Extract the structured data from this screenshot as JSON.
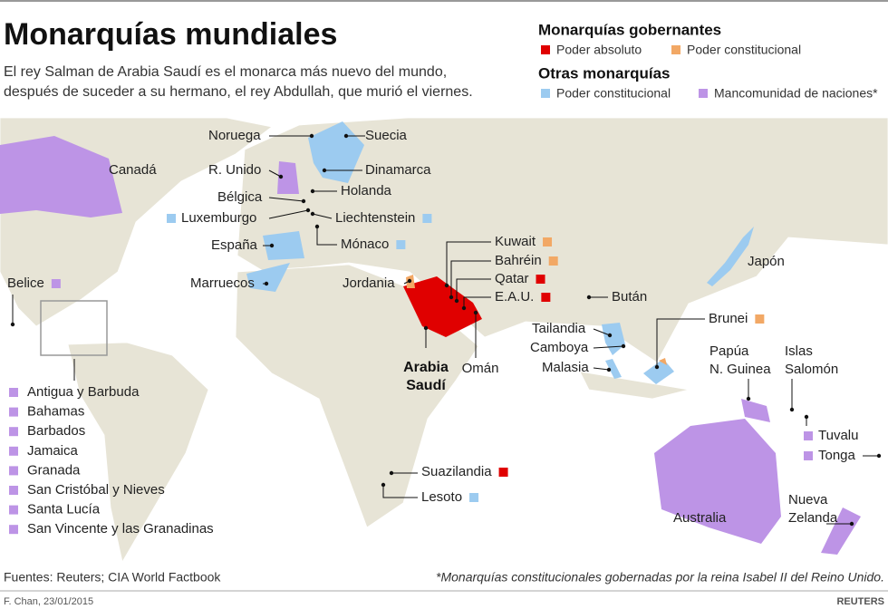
{
  "header": {
    "title": "Monarquías mundiales",
    "subtitle": [
      "El rey Salman de Arabia Saudí es el monarca más nuevo del mundo,",
      "después de suceder a su hermano, el rey Abdullah, que murió el viernes."
    ]
  },
  "legend": [
    {
      "heading": "Monarquías gobernantes",
      "items": [
        {
          "label": "Poder absoluto",
          "color": "#e00000"
        },
        {
          "label": "Poder constitucional",
          "color": "#f2a865"
        }
      ]
    },
    {
      "heading": "Otras monarquías",
      "items": [
        {
          "label": "Poder constitucional",
          "color": "#9ccbf0"
        },
        {
          "label": "Mancomunidad de naciones*",
          "color": "#bd94e6"
        }
      ]
    }
  ],
  "labels": [
    {
      "text": "Noruega"
    },
    {
      "text": "Suecia"
    },
    {
      "text": "Canadá"
    },
    {
      "text": "R. Unido"
    },
    {
      "text": "Dinamarca"
    },
    {
      "text": "Holanda"
    },
    {
      "text": "Bélgica"
    },
    {
      "text": "Luxemburgo",
      "color": "#9ccbf0"
    },
    {
      "text": "Liechtenstein",
      "color": "#9ccbf0"
    },
    {
      "text": "España"
    },
    {
      "text": "Mónaco",
      "color": "#9ccbf0"
    },
    {
      "text": "Kuwait",
      "color": "#f2a865"
    },
    {
      "text": "Bahréin",
      "color": "#f2a865"
    },
    {
      "text": "Belice",
      "color": "#bd94e6"
    },
    {
      "text": "Marruecos"
    },
    {
      "text": "Jordania"
    },
    {
      "text": "Qatar",
      "color": "#e00000"
    },
    {
      "text": "E.A.U.",
      "color": "#e00000"
    },
    {
      "text": "Japón"
    },
    {
      "text": "Bután"
    },
    {
      "text": "Brunei",
      "color": "#f2a865"
    },
    {
      "text": "Tailandia"
    },
    {
      "text": "Camboya"
    },
    {
      "text": "Malasia"
    },
    {
      "lines": [
        "Papúa",
        "N. Guinea"
      ]
    },
    {
      "lines": [
        "Islas",
        "Salomón"
      ]
    },
    {
      "lines": [
        "Arabia",
        "Saudí"
      ]
    },
    {
      "text": "Omán"
    },
    {
      "text": "Tuvalu",
      "color": "#bd94e6"
    },
    {
      "text": "Tonga",
      "color": "#bd94e6"
    },
    {
      "text": "Suazilandia",
      "color": "#e00000"
    },
    {
      "text": "Lesoto",
      "color": "#9ccbf0"
    },
    {
      "text": "Australia"
    },
    {
      "lines": [
        "Nueva",
        "Zelanda"
      ]
    }
  ],
  "caribbean": {
    "color": "#bd94e6",
    "items": [
      "Antigua y Barbuda",
      "Bahamas",
      "Barbados",
      "Jamaica",
      "Granada",
      "San Cristóbal y Nieves",
      "Santa Lucía",
      "San Vincente y las Granadinas"
    ]
  },
  "footer": {
    "sources": "Fuentes: Reuters; CIA World Factbook",
    "note": "*Monarquías constitucionales gobernadas por la reina Isabel II del Reino Unido.",
    "credit": "F. Chan, 23/01/2015",
    "brand": "REUTERS"
  }
}
